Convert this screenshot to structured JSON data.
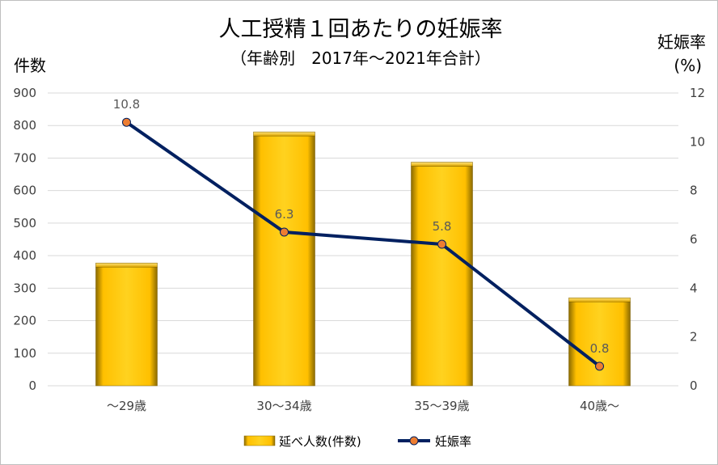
{
  "chart_data": {
    "type": "bar",
    "title": "人工授精１回あたりの妊娠率",
    "subtitle": "（年齢別　2017年～2021年合計）",
    "categories": [
      "～29歳",
      "30～34歳",
      "35～39歳",
      "40歳～"
    ],
    "y_left": {
      "label": "件数",
      "range": [
        0,
        900
      ],
      "ticks": [
        0,
        100,
        200,
        300,
        400,
        500,
        600,
        700,
        800,
        900
      ]
    },
    "y_right": {
      "label": "妊娠率",
      "unit": "(%)",
      "range": [
        0,
        12
      ],
      "ticks": [
        0,
        2,
        4,
        6,
        8,
        10,
        12
      ]
    },
    "grid": true,
    "legend": "bottom",
    "series": [
      {
        "name": "延べ人数(件数)",
        "type": "bar",
        "axis": "left",
        "color": "#FFC000",
        "values": [
          365,
          768,
          675,
          258
        ]
      },
      {
        "name": "妊娠率",
        "type": "line",
        "axis": "right",
        "color": "#002060",
        "marker_color": "#ED7D31",
        "values": [
          10.8,
          6.3,
          5.8,
          0.8
        ],
        "data_labels": [
          "10.8",
          "6.3",
          "5.8",
          "0.8"
        ]
      }
    ]
  }
}
